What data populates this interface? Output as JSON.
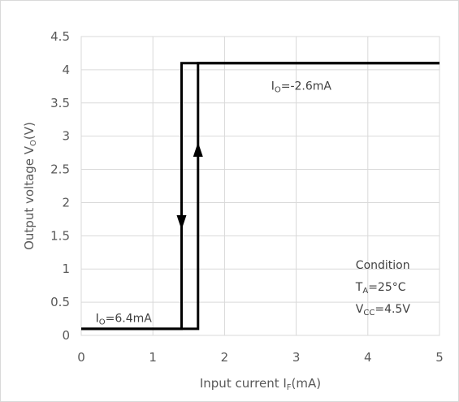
{
  "chart_data": {
    "type": "line",
    "title": "",
    "xlabel": {
      "main": "Input current I",
      "sub": "F",
      "tail": "(mA)"
    },
    "ylabel": {
      "main": "Output voltage V",
      "sub": "O",
      "tail": "(V)"
    },
    "xlim": [
      0,
      5
    ],
    "ylim": [
      0,
      4.5
    ],
    "x_ticks": [
      0,
      1,
      2,
      3,
      4,
      5
    ],
    "y_ticks": [
      0,
      0.5,
      1,
      1.5,
      2,
      2.5,
      3,
      3.5,
      4,
      4.5
    ],
    "x_tick_labels": [
      "0",
      "1",
      "2",
      "3",
      "4",
      "5"
    ],
    "y_tick_labels": [
      "0",
      "0.5",
      "1",
      "1.5",
      "2",
      "2.5",
      "3",
      "3.5",
      "4",
      "4.5"
    ],
    "grid": true,
    "line_color": "#000000",
    "grid_color": "#d9d9d9",
    "series": [
      {
        "direction": "increasing",
        "x": [
          0,
          1.63,
          1.63,
          5
        ],
        "y": [
          0.1,
          0.1,
          4.1,
          4.1
        ],
        "arrow": {
          "x": 1.63,
          "y": 2.8,
          "dir": "up"
        }
      },
      {
        "direction": "decreasing",
        "x": [
          5,
          1.4,
          1.4,
          0
        ],
        "y": [
          4.1,
          4.1,
          0.1,
          0.1
        ],
        "arrow": {
          "x": 1.4,
          "y": 1.7,
          "dir": "down"
        }
      }
    ],
    "annotations": [
      {
        "id": "io-high",
        "x": 2.65,
        "y": 3.7,
        "parts": [
          {
            "t": "I"
          },
          {
            "t": "O",
            "sub": true
          },
          {
            "t": "=-2.6mA"
          }
        ]
      },
      {
        "id": "io-low",
        "x": 0.2,
        "y": 0.2,
        "parts": [
          {
            "t": "I"
          },
          {
            "t": "O",
            "sub": true
          },
          {
            "t": "=6.4mA"
          }
        ]
      },
      {
        "id": "condition-title",
        "x": 3.83,
        "y": 1.0,
        "parts": [
          {
            "t": "Condition"
          }
        ]
      },
      {
        "id": "condition-ta",
        "x": 3.83,
        "y": 0.67,
        "parts": [
          {
            "t": "T"
          },
          {
            "t": "A",
            "sub": true
          },
          {
            "t": "=25°C"
          }
        ]
      },
      {
        "id": "condition-vcc",
        "x": 3.83,
        "y": 0.34,
        "parts": [
          {
            "t": "V"
          },
          {
            "t": "CC",
            "sub": true
          },
          {
            "t": "=4.5V"
          }
        ]
      }
    ]
  }
}
